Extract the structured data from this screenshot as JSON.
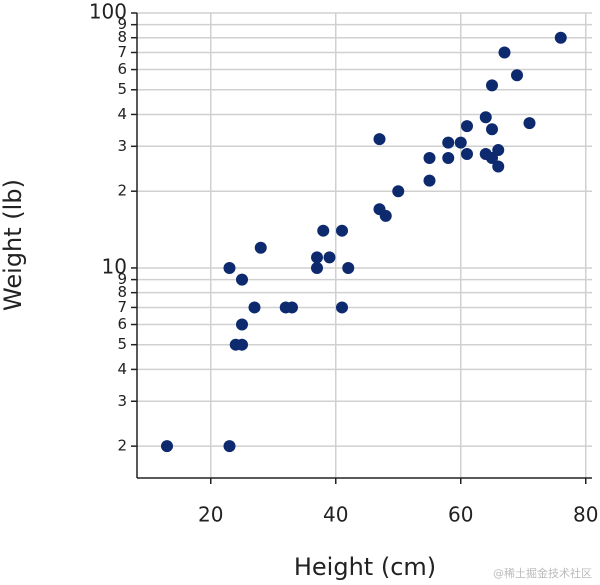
{
  "chart_data": {
    "type": "scatter",
    "x_label": "Height (cm)",
    "y_label": "Weight (lb)",
    "watermark": "@稀土掘金技术社区",
    "color": "#0d2a6e",
    "log_y": true,
    "grid": true,
    "xlim": [
      8.2,
      81
    ],
    "xticks": [
      20,
      40,
      60,
      80
    ],
    "ylim": [
      1.5,
      100
    ],
    "yticks": [
      2,
      3,
      4,
      5,
      6,
      7,
      8,
      9,
      10,
      {
        "value": 20,
        "label": "2"
      },
      {
        "value": 30,
        "label": "3"
      },
      {
        "value": 40,
        "label": "4"
      },
      {
        "value": 50,
        "label": "5"
      },
      {
        "value": 60,
        "label": "6"
      },
      {
        "value": 70,
        "label": "7"
      },
      {
        "value": 80,
        "label": "8"
      },
      {
        "value": 90,
        "label": "9"
      },
      100
    ],
    "x": [
      13,
      23,
      23,
      24,
      25,
      25,
      25,
      27,
      28,
      32,
      33,
      37,
      37,
      38,
      39,
      41,
      41,
      42,
      47,
      47,
      48,
      50,
      55,
      55,
      58,
      58,
      60,
      61,
      61,
      64,
      64,
      65,
      65,
      65,
      66,
      66,
      67,
      69,
      71,
      76
    ],
    "values": [
      2,
      2,
      10,
      5,
      5,
      6,
      9,
      7,
      12,
      7,
      7,
      10,
      11,
      14,
      11,
      14,
      7,
      10,
      32,
      17,
      16,
      20,
      27,
      22,
      31,
      27,
      31,
      36,
      28,
      39,
      28,
      35,
      27,
      52,
      29,
      25,
      70,
      57,
      37,
      80
    ]
  }
}
